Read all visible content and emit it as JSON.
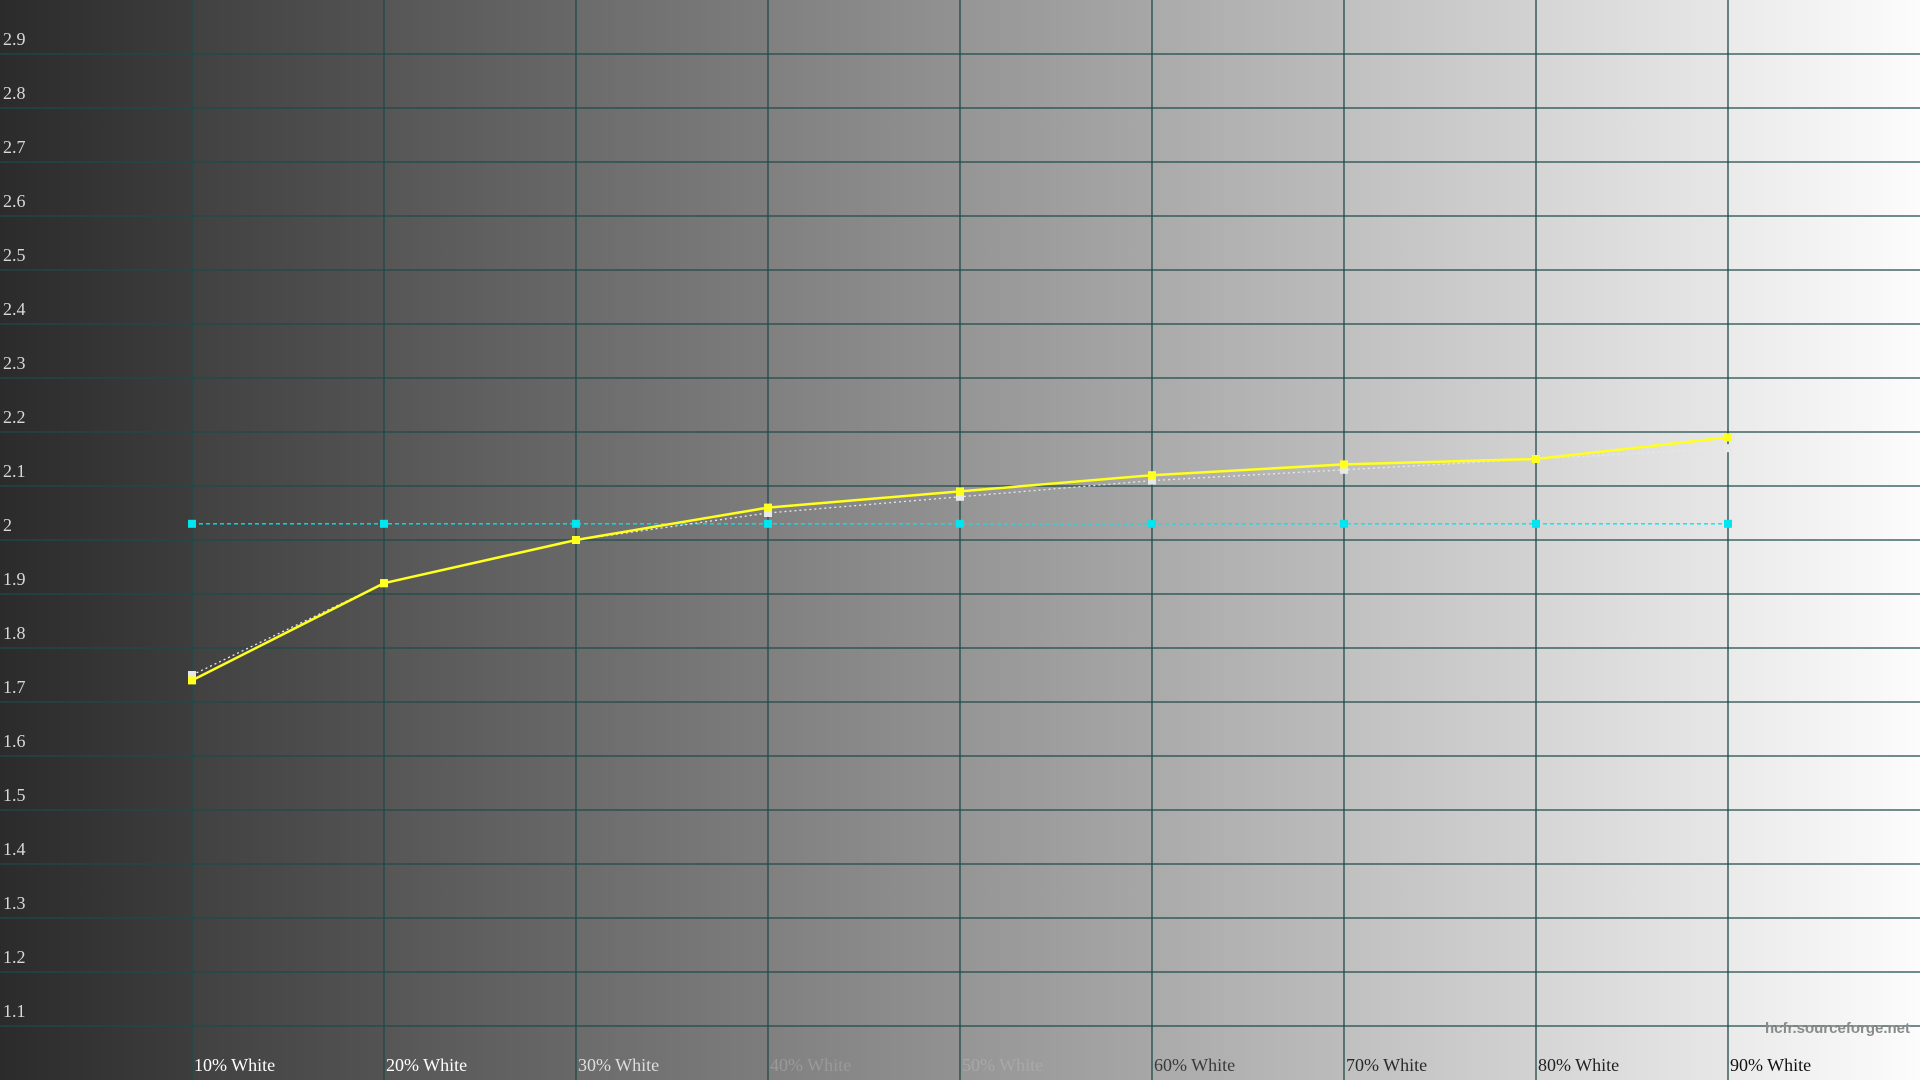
{
  "chart_data": {
    "type": "line",
    "categories": [
      "10% White",
      "20% White",
      "30% White",
      "40% White",
      "50% White",
      "60% White",
      "70% White",
      "80% White",
      "90% White"
    ],
    "series": [
      {
        "color": "#00e5f0",
        "style": "dashed",
        "values": [
          2.03,
          2.03,
          2.03,
          2.03,
          2.03,
          2.03,
          2.03,
          2.03,
          2.03
        ]
      },
      {
        "color": "#e8e8e8",
        "style": "dotted",
        "values": [
          1.75,
          1.92,
          2.0,
          2.05,
          2.08,
          2.11,
          2.13,
          2.15,
          2.17
        ]
      },
      {
        "color": "#ffff20",
        "style": "solid",
        "values": [
          1.74,
          1.92,
          2.0,
          2.06,
          2.09,
          2.12,
          2.14,
          2.15,
          2.19
        ]
      }
    ],
    "ylim": [
      1.0,
      3.0
    ],
    "yticks": [
      1.1,
      1.2,
      1.3,
      1.4,
      1.5,
      1.6,
      1.7,
      1.8,
      1.9,
      2,
      2.1,
      2.2,
      2.3,
      2.4,
      2.5,
      2.6,
      2.7,
      2.8,
      2.9
    ],
    "grid": true,
    "watermark": "hcfr.sourceforge.net"
  }
}
